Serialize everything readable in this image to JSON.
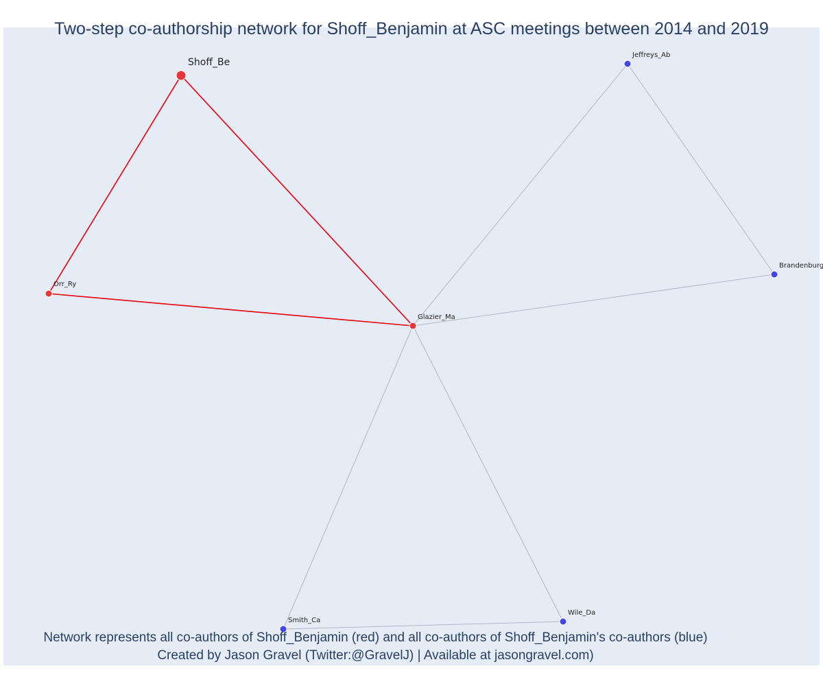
{
  "title": "Two-step co-authorship network for Shoff_Benjamin at ASC meetings between 2014 and 2019",
  "caption": {
    "line1": "Network represents all co-authors of Shoff_Benjamin (red) and all co-authors of Shoff_Benjamin's co-authors (blue)",
    "line2": "Created by Jason Gravel (Twitter:@GravelJ) | Available at jasongravel.com)"
  },
  "colors": {
    "background": "#e5ecf6",
    "focal": "#e8363a",
    "coauthor": "#e8363a",
    "second_step": "#4646e8",
    "direct_edge": "#e8000b",
    "indirect_edge": "#b0b6c8",
    "text": "#2a3f5f"
  },
  "network": {
    "nodes": [
      {
        "id": "Shoff_Be",
        "label": "Shoff_Be",
        "group": "focal"
      },
      {
        "id": "Orr_Ry",
        "label": "Orr_Ry",
        "group": "coauthor"
      },
      {
        "id": "Glazier_Ma",
        "label": "Glazier_Ma",
        "group": "coauthor"
      },
      {
        "id": "Jeffreys_Ab",
        "label": "Jeffreys_Ab",
        "group": "second_step"
      },
      {
        "id": "Brandenburg",
        "label": "Brandenburg",
        "group": "second_step"
      },
      {
        "id": "Smith_Ca",
        "label": "Smith_Ca",
        "group": "second_step"
      },
      {
        "id": "Wile_Da",
        "label": "Wile_Da",
        "group": "second_step"
      }
    ],
    "edges": [
      {
        "source": "Shoff_Be",
        "target": "Orr_Ry",
        "type": "direct"
      },
      {
        "source": "Shoff_Be",
        "target": "Glazier_Ma",
        "type": "direct"
      },
      {
        "source": "Orr_Ry",
        "target": "Glazier_Ma",
        "type": "direct"
      },
      {
        "source": "Glazier_Ma",
        "target": "Jeffreys_Ab",
        "type": "indirect"
      },
      {
        "source": "Glazier_Ma",
        "target": "Brandenburg",
        "type": "indirect"
      },
      {
        "source": "Glazier_Ma",
        "target": "Smith_Ca",
        "type": "indirect"
      },
      {
        "source": "Glazier_Ma",
        "target": "Wile_Da",
        "type": "indirect"
      },
      {
        "source": "Jeffreys_Ab",
        "target": "Brandenburg",
        "type": "indirect"
      },
      {
        "source": "Smith_Ca",
        "target": "Wile_Da",
        "type": "indirect"
      }
    ]
  }
}
